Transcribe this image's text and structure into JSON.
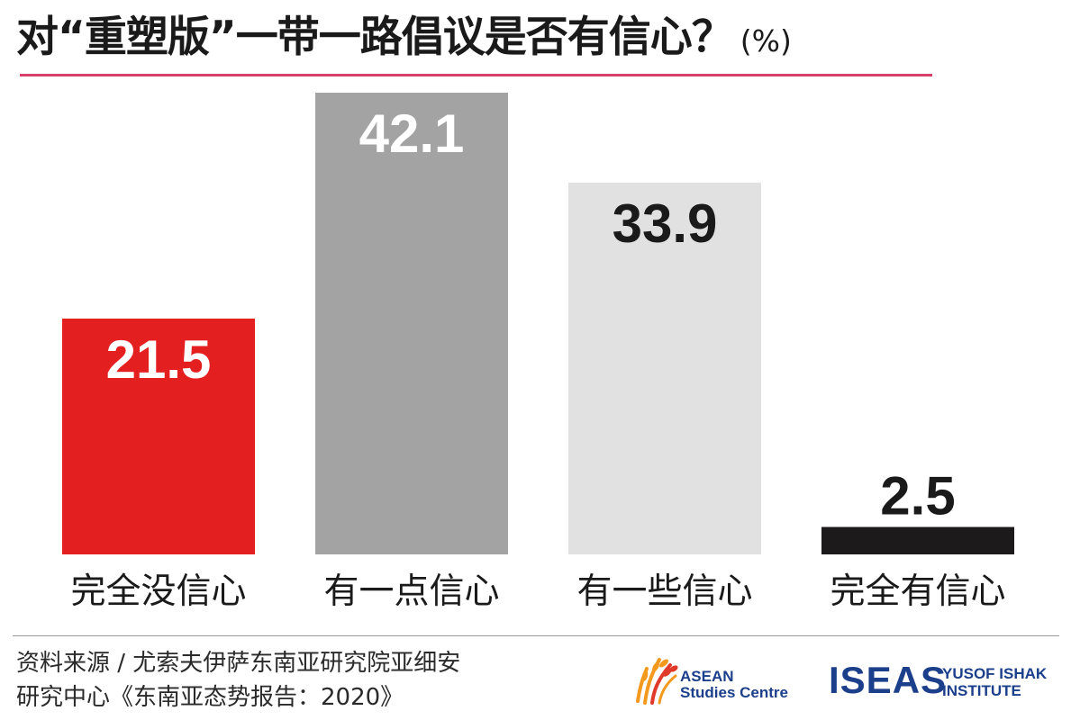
{
  "colors": {
    "title_rule": "#d6406a",
    "bar_colors": [
      "#e41f1f",
      "#a3a3a3",
      "#e1e1e1",
      "#1c1a1a"
    ],
    "label_colors": [
      "#ffffff",
      "#ffffff",
      "#1a1a1a",
      "#1a1a1a"
    ],
    "brand_blue": "#1c3f8c",
    "brand_orange": "#f39a1e",
    "brand_red": "#e03a2a"
  },
  "chart_data": {
    "type": "bar",
    "title": "对“重塑版”一带一路倡议是否有信心？",
    "unit": "(%)",
    "categories": [
      "完全没信心",
      "有一点信心",
      "有一些信心",
      "完全有信心"
    ],
    "values": [
      21.5,
      42.1,
      33.9,
      2.5
    ],
    "value_labels": [
      "21.5",
      "42.1",
      "33.9",
      "2.5"
    ],
    "ylim": [
      0,
      42.1
    ],
    "grid": false,
    "legend": "none"
  },
  "footer": {
    "source_line1": "资料来源 / 尤索夫伊萨东南亚研究院亚细安",
    "source_line2": "研究中心《东南亚态势报告：2020》"
  },
  "logos": {
    "asean_line1": "ASEAN",
    "asean_line2": "Studies Centre",
    "iseas_mark": "ISEAS",
    "iseas_line1": "YUSOF ISHAK",
    "iseas_line2": "INSTITUTE",
    "asean_icon": "rice-stalks-icon"
  }
}
